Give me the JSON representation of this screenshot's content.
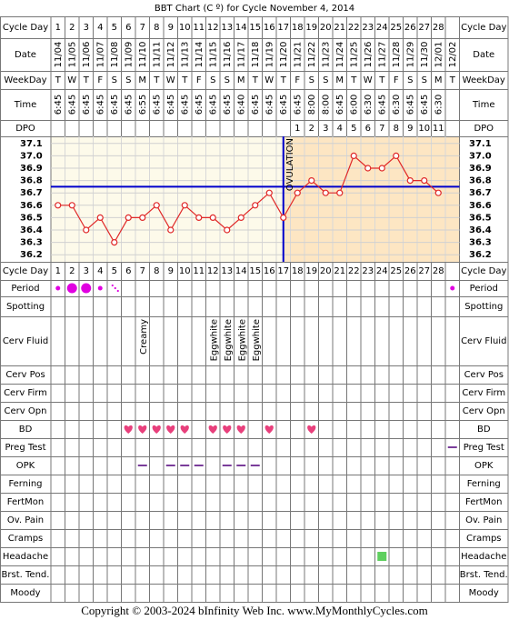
{
  "title": "BBT Chart (C º) for Cycle November 4, 2014",
  "footer": "Copyright © 2003-2024 bInfinity Web Inc.     www.MyMonthlyCycles.com",
  "row_labels": {
    "cycle_day": "Cycle Day",
    "date": "Date",
    "weekday": "WeekDay",
    "time": "Time",
    "dpo": "DPO",
    "period": "Period",
    "spotting": "Spotting",
    "cerv_fluid": "Cerv Fluid",
    "cerv_pos": "Cerv Pos",
    "cerv_firm": "Cerv Firm",
    "cerv_opn": "Cerv Opn",
    "bd": "BD",
    "preg_test": "Preg Test",
    "opk": "OPK",
    "ferning": "Ferning",
    "fertmon": "FertMon",
    "ov_pain": "Ov. Pain",
    "cramps": "Cramps",
    "headache": "Headache",
    "brst_tend": "Brst. Tend.",
    "moody": "Moody"
  },
  "chart_data": {
    "type": "line",
    "cycle_days": [
      1,
      2,
      3,
      4,
      5,
      6,
      7,
      8,
      9,
      10,
      11,
      12,
      13,
      14,
      15,
      16,
      17,
      18,
      19,
      20,
      21,
      22,
      23,
      24,
      25,
      26,
      27,
      28,
      null
    ],
    "dates": [
      "11/04",
      "11/05",
      "11/06",
      "11/07",
      "11/08",
      "11/09",
      "11/10",
      "11/11",
      "11/12",
      "11/13",
      "11/14",
      "11/15",
      "11/16",
      "11/17",
      "11/18",
      "11/19",
      "11/20",
      "11/21",
      "11/22",
      "11/23",
      "11/24",
      "11/25",
      "11/26",
      "11/27",
      "11/28",
      "11/29",
      "11/30",
      "12/01",
      "12/02"
    ],
    "weekdays": [
      "T",
      "W",
      "T",
      "F",
      "S",
      "S",
      "M",
      "T",
      "W",
      "T",
      "F",
      "S",
      "S",
      "M",
      "T",
      "W",
      "T",
      "F",
      "S",
      "S",
      "M",
      "T",
      "W",
      "T",
      "F",
      "S",
      "S",
      "M",
      "T"
    ],
    "times": [
      "6:45",
      "6:45",
      "6:45",
      "6:45",
      "6:45",
      "6:45",
      "6:55",
      "6:45",
      "6:45",
      "6:45",
      "6:45",
      "6:45",
      "6:45",
      "6:40",
      "6:45",
      "6:45",
      "6:45",
      "6:45",
      "8:00",
      "8:00",
      "6:45",
      "6:00",
      "6:30",
      "6:45",
      "6:30",
      "6:45",
      "6:45",
      "6:30",
      null
    ],
    "dpo": [
      null,
      null,
      null,
      null,
      null,
      null,
      null,
      null,
      null,
      null,
      null,
      null,
      null,
      null,
      null,
      null,
      null,
      1,
      2,
      3,
      4,
      5,
      6,
      7,
      8,
      9,
      10,
      11,
      null
    ],
    "values": [
      36.6,
      36.6,
      36.4,
      36.5,
      36.3,
      36.5,
      36.5,
      36.6,
      36.4,
      36.6,
      36.5,
      36.5,
      36.4,
      36.5,
      36.6,
      36.7,
      36.5,
      36.7,
      36.8,
      36.7,
      36.7,
      37.0,
      36.9,
      36.9,
      37.0,
      36.8,
      36.8,
      36.7,
      null
    ],
    "color": "#e02828",
    "ylim": [
      36.15,
      37.15
    ],
    "yticks": [
      37.1,
      {
        "value": 37.0,
        "label": "37.0"
      },
      36.9,
      36.8,
      36.7,
      36.6,
      36.5,
      36.4,
      36.3,
      36.2
    ],
    "coverline": 36.75,
    "ovulation_day": 17,
    "ovulation_label": "OVULATION",
    "period_days": [
      1,
      2,
      3,
      4,
      5,
      29
    ],
    "period_flow": [
      "light",
      "heavy",
      "heavy",
      "light",
      "spotting",
      "light"
    ],
    "cerv_fluid": [
      {
        "day": 7,
        "label": "Creamy"
      },
      {
        "day": 12,
        "label": "Eggwhite"
      },
      {
        "day": 13,
        "label": "Eggwhite"
      },
      {
        "day": 14,
        "label": "Eggwhite"
      },
      {
        "day": 15,
        "label": "Eggwhite"
      }
    ],
    "bd_days": [
      6,
      7,
      8,
      9,
      10,
      12,
      13,
      14,
      16,
      19
    ],
    "preg_test_negative_days": [
      29
    ],
    "opk_negative_days": [
      7,
      9,
      10,
      11,
      13,
      14,
      15
    ],
    "headache_days": [
      24
    ]
  }
}
